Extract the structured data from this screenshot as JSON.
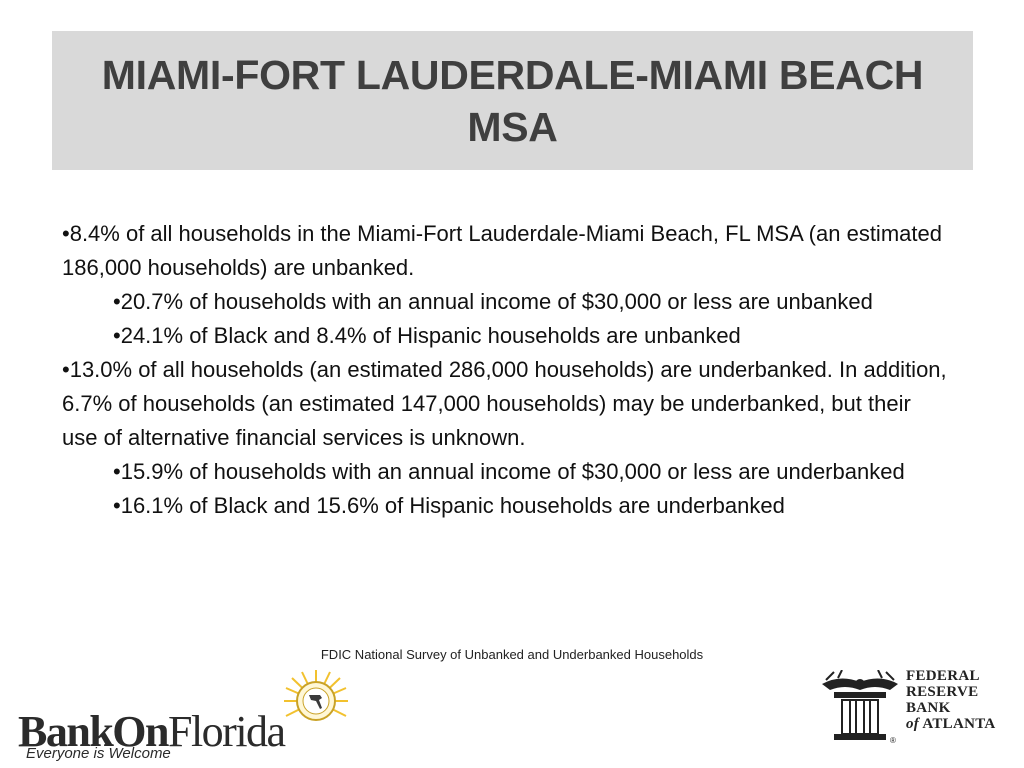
{
  "slide": {
    "title": "MIAMI-FORT LAUDERDALE-MIAMI BEACH MSA",
    "bullets": [
      {
        "level": 1,
        "text": "•8.4% of all households in the Miami-Fort Lauderdale-Miami Beach, FL MSA (an estimated 186,000 households) are unbanked."
      },
      {
        "level": 2,
        "text": "•20.7% of households with an annual income of $30,000 or less are unbanked"
      },
      {
        "level": 2,
        "text": "•24.1% of Black and 8.4% of Hispanic households are unbanked"
      },
      {
        "level": 1,
        "text": "•13.0% of all households (an estimated 286,000 households) are underbanked. In addition, 6.7% of households (an estimated 147,000 households) may be underbanked, but their use of alternative financial services is unknown."
      },
      {
        "level": 2,
        "text": "•15.9% of households with an annual income of $30,000 or less are underbanked"
      },
      {
        "level": 2,
        "text": "•16.1% of Black and 15.6% of Hispanic households are underbanked"
      }
    ],
    "source": "FDIC National Survey of Unbanked and Underbanked Households"
  },
  "logos": {
    "bankon": {
      "word_a": "BankOn",
      "word_b": "Florida",
      "tagline": "Everyone is Welcome"
    },
    "frb": {
      "line1": "FEDERAL",
      "line2": "RESERVE",
      "line3": "BANK",
      "line4_a": "of",
      "line4_b": "ATLANTA",
      "registered": "®"
    }
  },
  "colors": {
    "title_band": "#d9d9d9",
    "title_text": "#3f3f3f",
    "sun": "#f2c12e"
  }
}
